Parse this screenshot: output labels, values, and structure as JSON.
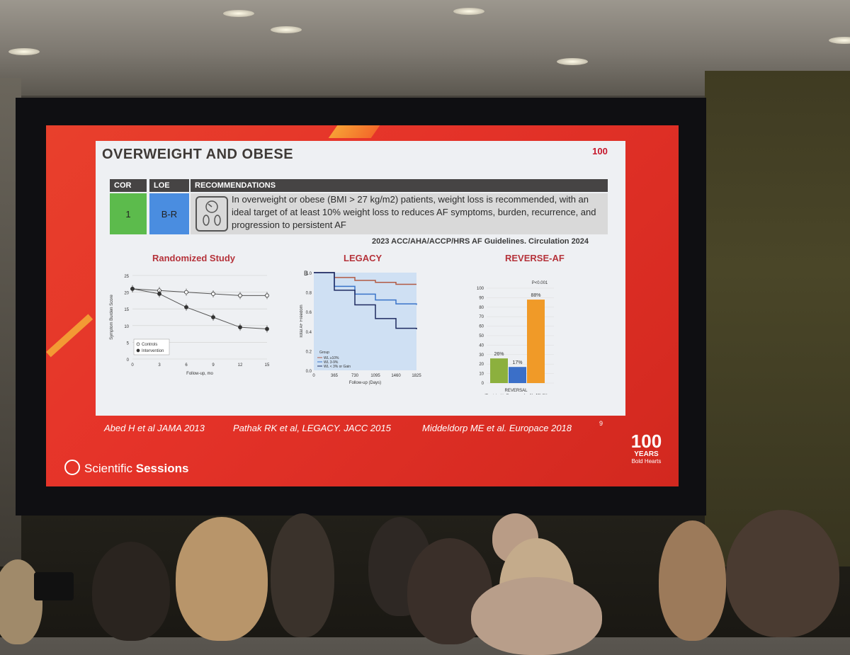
{
  "slide": {
    "title": "OVERWEIGHT AND OBESE",
    "logo_small": "100",
    "table": {
      "headers": [
        "COR",
        "LOE",
        "RECOMMENDATIONS"
      ],
      "cor": "1",
      "loe": "B-R",
      "recommendation": "In overweight or obese (BMI > 27 kg/m2) patients, weight loss is recommended, with an ideal target of at least 10% weight loss to reduces AF symptoms, burden, recurrence, and progression to persistent AF",
      "colors": {
        "cor": "#5cbb4c",
        "loe": "#4a8de0",
        "header": "#464444",
        "rec_bg": "#d9d9d9"
      }
    },
    "citation": "2023 ACC/AHA/ACCP/HRS AF Guidelines. Circulation 2024",
    "refs": [
      "Abed H et al JAMA 2013",
      "Pathak RK et al, LEGACY. JACC 2015",
      "Middeldorp ME et al. Europace 2018"
    ],
    "page_number": "9",
    "footer_brand": "Scientific",
    "footer_brand_bold": "Sessions",
    "logo_big_number": "100",
    "logo_big_years": "YEARS",
    "logo_big_tag": "Bold Hearts"
  },
  "chart_data": [
    {
      "type": "line",
      "title": "Randomized Study",
      "xlabel": "Follow-up, mo",
      "ylabel": "Symptom Burden Score",
      "x": [
        0,
        3,
        6,
        9,
        12,
        15
      ],
      "ylim": [
        0,
        25
      ],
      "yticks": [
        0,
        5,
        10,
        15,
        20,
        25
      ],
      "series": [
        {
          "name": "Controls",
          "values": [
            21,
            20.5,
            20,
            19.5,
            19,
            19
          ]
        },
        {
          "name": "Intervention",
          "values": [
            21,
            19.5,
            15.5,
            12.5,
            9.5,
            9
          ]
        }
      ]
    },
    {
      "type": "line",
      "title": "LEGACY",
      "panel_label": "B",
      "xlabel": "Follow-up (Days)",
      "ylabel": "Total AF Freedom",
      "x": [
        0,
        365,
        730,
        1095,
        1460,
        1825
      ],
      "ylim": [
        0,
        1.0
      ],
      "yticks": [
        "0.0",
        "0.2",
        "0.4",
        "0.6",
        "0.8",
        "1.0"
      ],
      "legend_title": "Group",
      "series": [
        {
          "name": "WL ≥10%",
          "values": [
            1.0,
            0.95,
            0.92,
            0.9,
            0.88,
            0.88
          ]
        },
        {
          "name": "WL 3-9%",
          "values": [
            1.0,
            0.86,
            0.78,
            0.72,
            0.68,
            0.67
          ]
        },
        {
          "name": "WL < 3% or Gain",
          "values": [
            1.0,
            0.82,
            0.67,
            0.53,
            0.43,
            0.42
          ]
        }
      ],
      "colors": [
        "#b25a44",
        "#3a74c9",
        "#1e2a60"
      ]
    },
    {
      "type": "bar",
      "title": "REVERSE-AF",
      "categories": [
        "",
        "",
        ""
      ],
      "values": [
        26,
        17,
        88
      ],
      "labels": [
        "26%",
        "17%",
        "88%"
      ],
      "annotation": "P<0.001",
      "xlabel": "REVERSAL",
      "xlabel2": "(Persistent to Paroxysmal or No AF) (%)",
      "ylim": [
        0,
        100
      ],
      "yticks": [
        0,
        10,
        20,
        30,
        40,
        50,
        60,
        70,
        80,
        90,
        100
      ],
      "colors": [
        "#8cb03e",
        "#3b6fc8",
        "#f09a28"
      ]
    }
  ]
}
